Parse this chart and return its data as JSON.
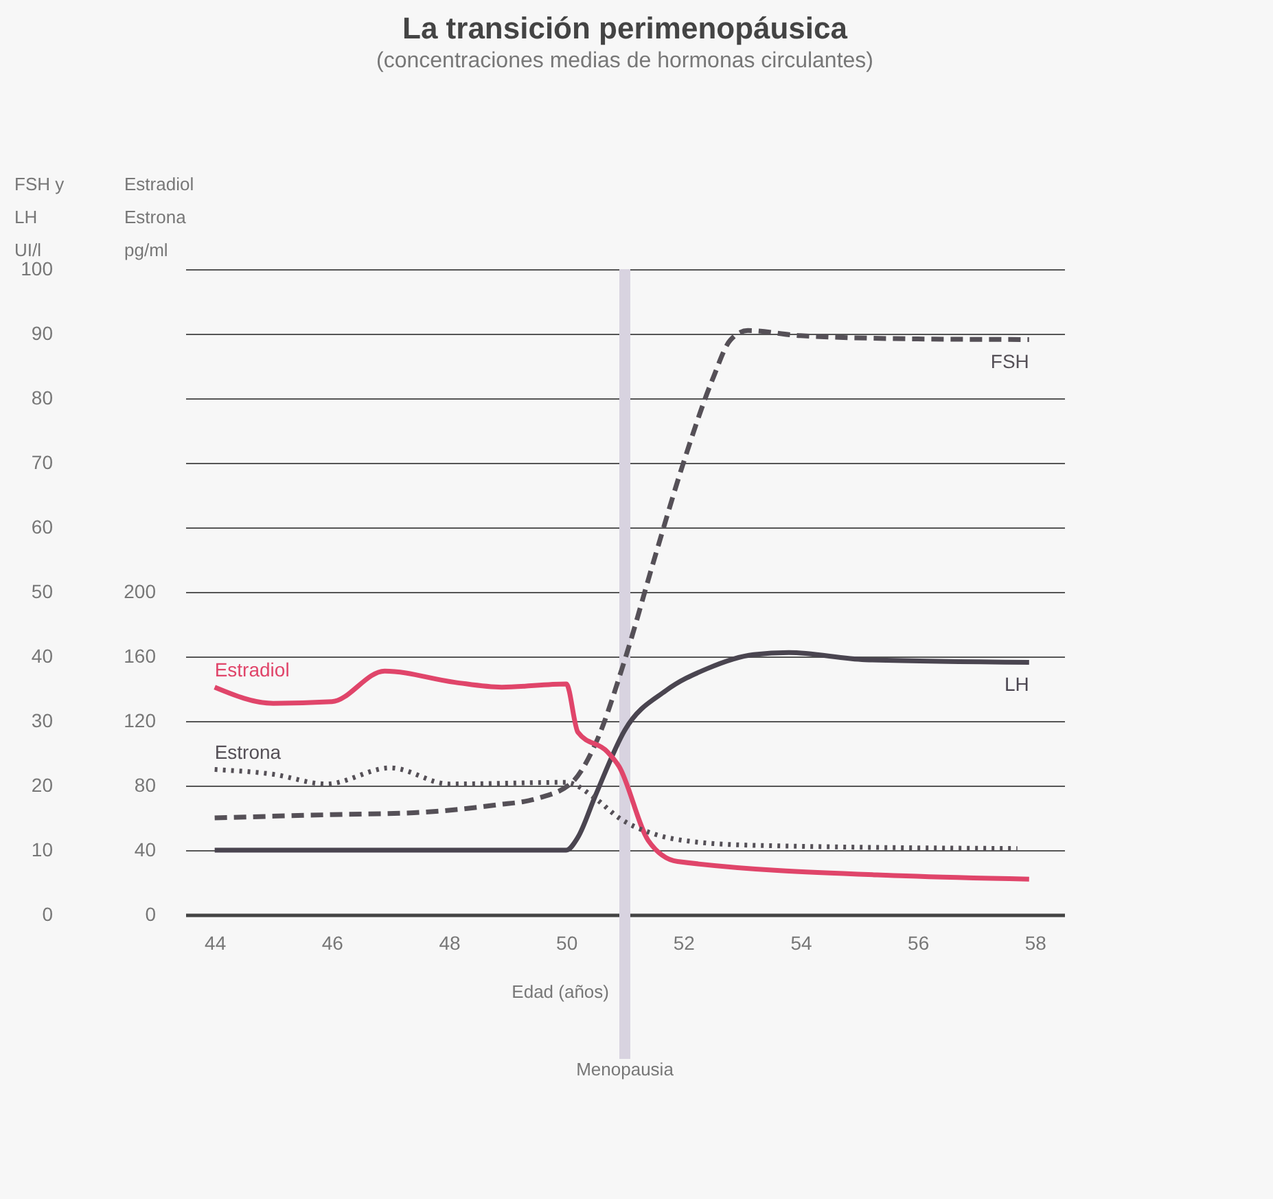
{
  "chart_data": {
    "type": "line",
    "title": "La transición perimenopáusica",
    "subtitle": "(concentraciones medias de hormonas circulantes)",
    "xlabel": "Edad (años)",
    "ylabel": "FSH y\nLH\nUI/l",
    "y2label": "Estradiol\nEstrona\npg/ml",
    "xlim": [
      43.5,
      58.5
    ],
    "xticks": [
      44,
      46,
      48,
      50,
      52,
      54,
      56,
      58
    ],
    "ylim": [
      0,
      100
    ],
    "yticks": [
      0,
      10,
      20,
      30,
      40,
      50,
      60,
      70,
      80,
      90,
      100
    ],
    "y2lim": [
      0,
      400
    ],
    "y2ticks": [
      0,
      40,
      80,
      120,
      160,
      200
    ],
    "grid": "y",
    "legend": false,
    "series": [
      {
        "name": "FSH",
        "color": "#555057",
        "line_style": "dashed",
        "x": [
          44,
          46,
          47.4,
          48.8,
          49.5,
          50.1,
          50.5,
          51,
          51.5,
          52,
          52.5,
          52.8,
          53.1,
          54,
          56,
          57.9
        ],
        "values": [
          15,
          15.5,
          15.8,
          17,
          18,
          20.5,
          26.5,
          39.5,
          55,
          70,
          83,
          89,
          90.5,
          89.7,
          89.2,
          89.1
        ]
      },
      {
        "name": "LH",
        "color": "#4a4550",
        "line_style": "solid",
        "x": [
          44,
          50,
          50.2,
          50.5,
          51,
          51.7,
          52.4,
          53.2,
          53.8,
          55.1,
          57.9
        ],
        "values": [
          10,
          10,
          12,
          18.5,
          28.6,
          34.7,
          38.1,
          40.3,
          40.6,
          39.5,
          39.1
        ]
      },
      {
        "name": "Estradiol",
        "color": "#e0456a",
        "line_style": "solid",
        "axis": "y2",
        "x": [
          44,
          45,
          46,
          46.9,
          48.1,
          48.9,
          50,
          50.2,
          50.7,
          50.9,
          51.4,
          51.9,
          55.8,
          57.9
        ],
        "values": [
          141,
          131,
          132,
          151,
          144,
          141,
          143,
          113,
          101,
          92,
          46,
          33,
          24,
          22
        ]
      },
      {
        "name": "Estrona",
        "color": "#555057",
        "line_style": "dotted",
        "axis": "y2",
        "x": [
          44,
          45,
          45.9,
          47,
          48,
          50,
          50.5,
          50.9,
          51.5,
          52,
          53.2,
          57.7
        ],
        "values": [
          90,
          87,
          81,
          91,
          81,
          82,
          72,
          60,
          50,
          46,
          43,
          41
        ]
      }
    ],
    "ref_lines": [
      {
        "axis": "x",
        "value": 51,
        "label": "Menopausia",
        "color": "#d8d3e0"
      }
    ]
  }
}
